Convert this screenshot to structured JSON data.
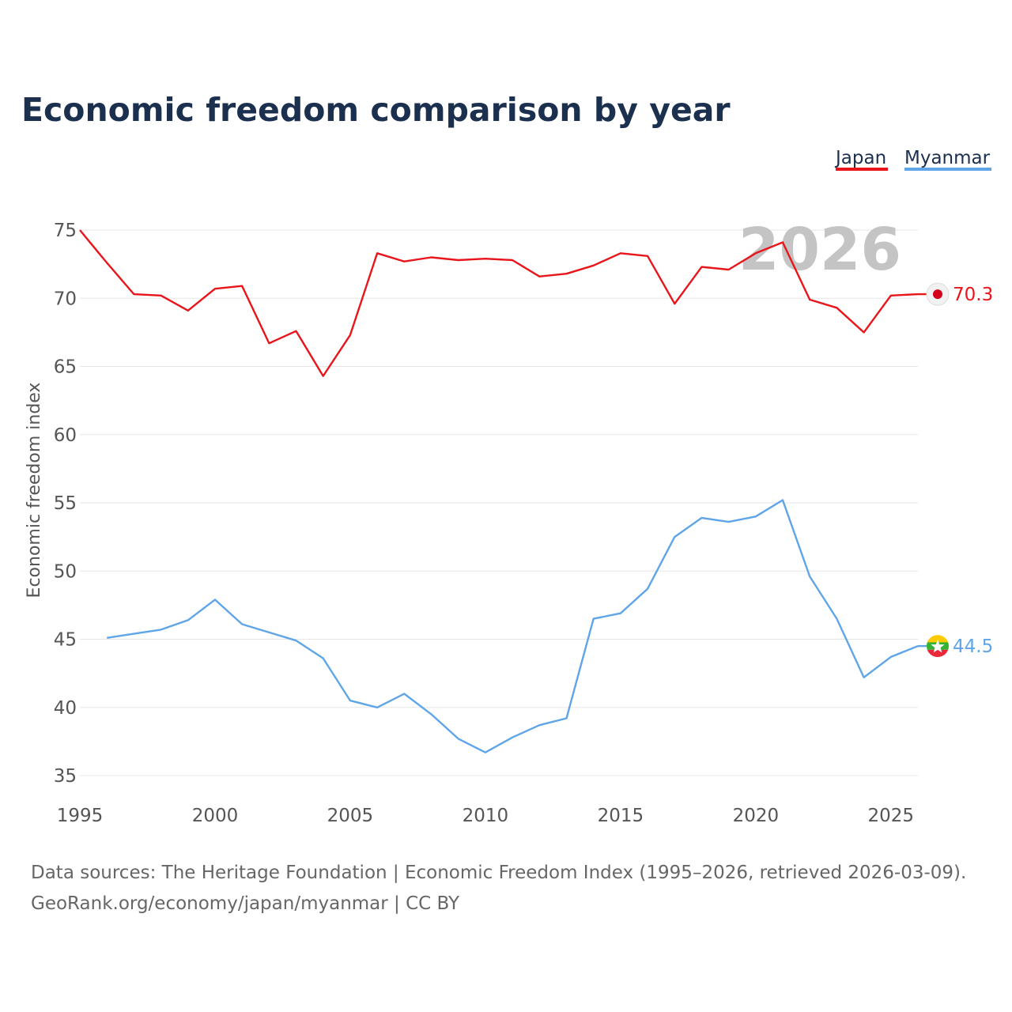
{
  "chart_data": {
    "type": "line",
    "title": "Economic freedom comparison by year",
    "ylabel": "Economic freedom index",
    "xlabel": "",
    "xlim": [
      1995,
      2026
    ],
    "ylim": [
      35,
      75
    ],
    "x_ticks": [
      1995,
      2000,
      2005,
      2010,
      2015,
      2020,
      2025
    ],
    "y_ticks": [
      35,
      40,
      45,
      50,
      55,
      60,
      65,
      70,
      75
    ],
    "grid": true,
    "legend_position": "top-right",
    "current_year": "2026",
    "series": [
      {
        "name": "Japan",
        "color": "#e8151b",
        "end_label": "70.3",
        "marker_icon": "japan-flag-icon",
        "points": [
          [
            1995,
            75.0
          ],
          [
            1996,
            72.6
          ],
          [
            1997,
            70.3
          ],
          [
            1998,
            70.2
          ],
          [
            1999,
            69.1
          ],
          [
            2000,
            70.7
          ],
          [
            2001,
            70.9
          ],
          [
            2002,
            66.7
          ],
          [
            2003,
            67.6
          ],
          [
            2004,
            64.3
          ],
          [
            2005,
            67.3
          ],
          [
            2006,
            73.3
          ],
          [
            2007,
            72.7
          ],
          [
            2008,
            73.0
          ],
          [
            2009,
            72.8
          ],
          [
            2010,
            72.9
          ],
          [
            2011,
            72.8
          ],
          [
            2012,
            71.6
          ],
          [
            2013,
            71.8
          ],
          [
            2014,
            72.4
          ],
          [
            2015,
            73.3
          ],
          [
            2016,
            73.1
          ],
          [
            2017,
            69.6
          ],
          [
            2018,
            72.3
          ],
          [
            2019,
            72.1
          ],
          [
            2020,
            73.3
          ],
          [
            2021,
            74.1
          ],
          [
            2022,
            69.9
          ],
          [
            2023,
            69.3
          ],
          [
            2024,
            67.5
          ],
          [
            2025,
            70.2
          ],
          [
            2026,
            70.3
          ]
        ]
      },
      {
        "name": "Myanmar",
        "color": "#5fa5e8",
        "end_label": "44.5",
        "marker_icon": "myanmar-flag-icon",
        "points": [
          [
            1996,
            45.1
          ],
          [
            1997,
            45.4
          ],
          [
            1998,
            45.7
          ],
          [
            1999,
            46.4
          ],
          [
            2000,
            47.9
          ],
          [
            2001,
            46.1
          ],
          [
            2002,
            45.5
          ],
          [
            2003,
            44.9
          ],
          [
            2004,
            43.6
          ],
          [
            2005,
            40.5
          ],
          [
            2006,
            40.0
          ],
          [
            2007,
            41.0
          ],
          [
            2008,
            39.5
          ],
          [
            2009,
            37.7
          ],
          [
            2010,
            36.7
          ],
          [
            2011,
            37.8
          ],
          [
            2012,
            38.7
          ],
          [
            2013,
            39.2
          ],
          [
            2014,
            46.5
          ],
          [
            2015,
            46.9
          ],
          [
            2016,
            48.7
          ],
          [
            2017,
            52.5
          ],
          [
            2018,
            53.9
          ],
          [
            2019,
            53.6
          ],
          [
            2020,
            54.0
          ],
          [
            2021,
            55.2
          ],
          [
            2022,
            49.6
          ],
          [
            2023,
            46.5
          ],
          [
            2024,
            42.2
          ],
          [
            2025,
            43.7
          ],
          [
            2026,
            44.5
          ]
        ]
      }
    ],
    "source_line_1": "Data sources: The Heritage Foundation | Economic Freedom Index (1995–2026, retrieved 2026-03-09).",
    "source_line_2": "GeoRank.org/economy/japan/myanmar | CC BY"
  }
}
